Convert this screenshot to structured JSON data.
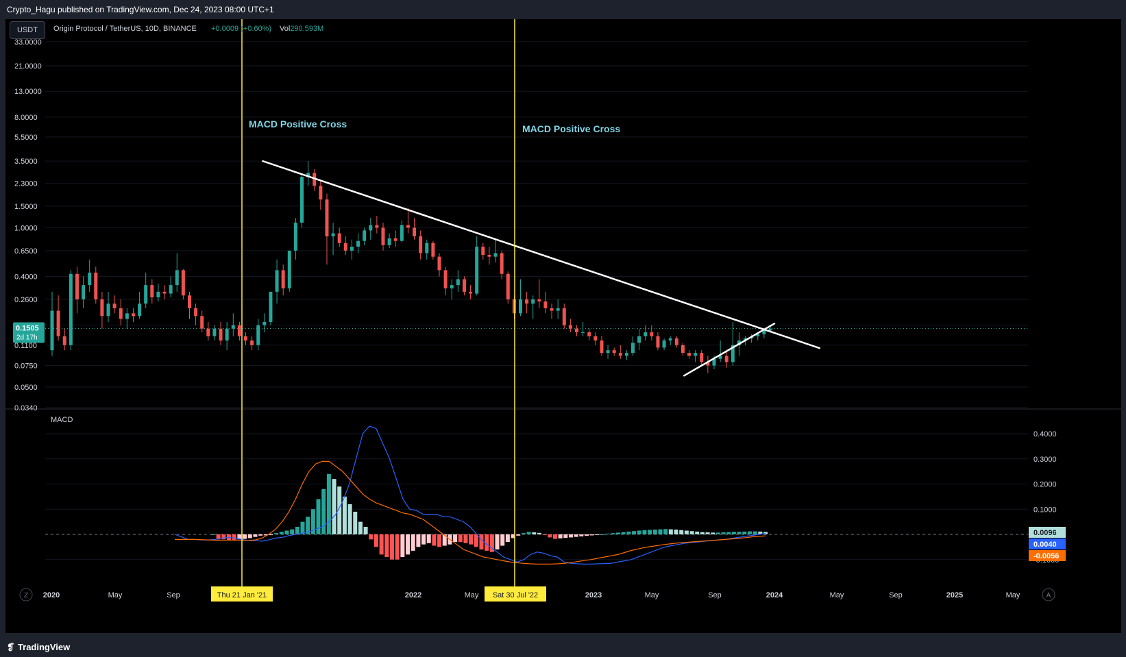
{
  "publish_line": "Crypto_Hagu published on TradingView.com, Dec 24, 2023 08:00 UTC+1",
  "header": {
    "currency_button": "USDT",
    "symbol_title": "Origin Protocol / TetherUS, 10D, BINANCE",
    "change_text": "+0.0009 (+0.60%)",
    "vol_label": "Vol",
    "vol_value": "290.593M"
  },
  "colors": {
    "up": "#26a69a",
    "down": "#ef5350",
    "background": "#000000",
    "vertical_line": "#ffeb3b",
    "annotation_text": "#7fd6e6",
    "macd_line": "#2962ff",
    "signal_line": "#ff6d00",
    "hist_up_strong": "#26a69a",
    "hist_up_weak": "#b2dfdb",
    "hist_down_strong": "#ff5252",
    "hist_down_weak": "#ffcdd2"
  },
  "annotations": {
    "cross_1": "MACD Positive Cross",
    "cross_2": "MACD Positive Cross"
  },
  "price_axis": {
    "ticks": [
      "33.0000",
      "21.0000",
      "13.0000",
      "8.0000",
      "5.5000",
      "3.5000",
      "2.3000",
      "1.5000",
      "1.0000",
      "0.6500",
      "0.4000",
      "0.2600",
      "0.1600",
      "0.1100",
      "0.0750",
      "0.0500",
      "0.0340"
    ],
    "current_price": "0.1505",
    "countdown": "2d 17h"
  },
  "macd_pane": {
    "title": "MACD",
    "ticks": [
      "0.4000",
      "0.3000",
      "0.2000",
      "0.1000",
      "-0.1000"
    ],
    "histogram_value": "0.0096",
    "macd_value": "0.0040",
    "signal_value": "-0.0056"
  },
  "time_axis": {
    "labels": [
      "2020",
      "May",
      "Sep",
      "2022",
      "May",
      "2023",
      "May",
      "Sep",
      "2024",
      "May",
      "Sep",
      "2025",
      "May"
    ],
    "highlight_1": "Thu 21 Jan '21",
    "highlight_2": "Sat 30 Jul '22",
    "left_button": "Z",
    "right_button": "A"
  },
  "footer": {
    "brand": "TradingView"
  },
  "chart_data": {
    "type": "candlestick",
    "symbol": "Origin Protocol / TetherUS",
    "interval": "10D",
    "exchange": "BINANCE",
    "scale": "log",
    "ylim": [
      0.034,
      33
    ],
    "ohlc": [
      [
        0.1,
        0.3,
        0.09,
        0.21
      ],
      [
        0.21,
        0.28,
        0.12,
        0.13
      ],
      [
        0.13,
        0.15,
        0.1,
        0.11
      ],
      [
        0.11,
        0.45,
        0.1,
        0.42
      ],
      [
        0.42,
        0.48,
        0.2,
        0.26
      ],
      [
        0.26,
        0.4,
        0.22,
        0.34
      ],
      [
        0.34,
        0.55,
        0.3,
        0.43
      ],
      [
        0.43,
        0.48,
        0.24,
        0.26
      ],
      [
        0.26,
        0.3,
        0.15,
        0.19
      ],
      [
        0.19,
        0.3,
        0.17,
        0.24
      ],
      [
        0.24,
        0.28,
        0.2,
        0.22
      ],
      [
        0.22,
        0.26,
        0.16,
        0.18
      ],
      [
        0.18,
        0.22,
        0.15,
        0.2
      ],
      [
        0.2,
        0.22,
        0.17,
        0.19
      ],
      [
        0.19,
        0.3,
        0.18,
        0.24
      ],
      [
        0.24,
        0.43,
        0.22,
        0.34
      ],
      [
        0.34,
        0.38,
        0.24,
        0.27
      ],
      [
        0.27,
        0.35,
        0.25,
        0.3
      ],
      [
        0.3,
        0.34,
        0.26,
        0.29
      ],
      [
        0.29,
        0.4,
        0.27,
        0.34
      ],
      [
        0.34,
        0.62,
        0.3,
        0.45
      ],
      [
        0.45,
        0.46,
        0.26,
        0.28
      ],
      [
        0.28,
        0.3,
        0.18,
        0.22
      ],
      [
        0.22,
        0.24,
        0.16,
        0.19
      ],
      [
        0.19,
        0.21,
        0.14,
        0.15
      ],
      [
        0.15,
        0.17,
        0.12,
        0.13
      ],
      [
        0.13,
        0.16,
        0.12,
        0.15
      ],
      [
        0.15,
        0.17,
        0.11,
        0.12
      ],
      [
        0.12,
        0.17,
        0.1,
        0.15
      ],
      [
        0.15,
        0.2,
        0.13,
        0.16
      ],
      [
        0.16,
        0.17,
        0.12,
        0.13
      ],
      [
        0.13,
        0.14,
        0.11,
        0.12
      ],
      [
        0.12,
        0.13,
        0.1,
        0.11
      ],
      [
        0.11,
        0.18,
        0.1,
        0.16
      ],
      [
        0.16,
        0.2,
        0.14,
        0.17
      ],
      [
        0.17,
        0.3,
        0.16,
        0.3
      ],
      [
        0.3,
        0.55,
        0.24,
        0.45
      ],
      [
        0.45,
        0.5,
        0.28,
        0.32
      ],
      [
        0.32,
        0.65,
        0.3,
        0.65
      ],
      [
        0.65,
        1.2,
        0.55,
        1.1
      ],
      [
        1.1,
        2.8,
        1.0,
        2.6
      ],
      [
        2.6,
        3.5,
        2.2,
        2.8
      ],
      [
        2.8,
        3.0,
        2.0,
        2.2
      ],
      [
        2.2,
        2.4,
        1.4,
        1.7
      ],
      [
        1.7,
        1.9,
        0.5,
        0.85
      ],
      [
        0.85,
        1.1,
        0.6,
        0.9
      ],
      [
        0.9,
        1.0,
        0.7,
        0.75
      ],
      [
        0.75,
        0.85,
        0.6,
        0.65
      ],
      [
        0.65,
        0.8,
        0.55,
        0.7
      ],
      [
        0.7,
        0.9,
        0.62,
        0.78
      ],
      [
        0.78,
        1.0,
        0.72,
        0.95
      ],
      [
        0.95,
        1.2,
        0.8,
        1.05
      ],
      [
        1.05,
        1.25,
        0.9,
        1.0
      ],
      [
        1.0,
        1.1,
        0.65,
        0.72
      ],
      [
        0.72,
        0.9,
        0.68,
        0.82
      ],
      [
        0.82,
        0.95,
        0.7,
        0.78
      ],
      [
        0.78,
        1.15,
        0.76,
        1.05
      ],
      [
        1.05,
        1.45,
        0.9,
        1.0
      ],
      [
        1.0,
        1.2,
        0.8,
        0.85
      ],
      [
        0.85,
        0.95,
        0.55,
        0.62
      ],
      [
        0.62,
        0.8,
        0.55,
        0.75
      ],
      [
        0.75,
        0.78,
        0.55,
        0.58
      ],
      [
        0.58,
        0.62,
        0.4,
        0.45
      ],
      [
        0.45,
        0.48,
        0.28,
        0.32
      ],
      [
        0.32,
        0.38,
        0.26,
        0.34
      ],
      [
        0.34,
        0.45,
        0.3,
        0.38
      ],
      [
        0.38,
        0.4,
        0.28,
        0.3
      ],
      [
        0.3,
        0.34,
        0.26,
        0.29
      ],
      [
        0.29,
        0.85,
        0.28,
        0.7
      ],
      [
        0.7,
        0.75,
        0.55,
        0.6
      ],
      [
        0.6,
        0.7,
        0.5,
        0.58
      ],
      [
        0.58,
        0.8,
        0.52,
        0.62
      ],
      [
        0.62,
        0.65,
        0.38,
        0.42
      ],
      [
        0.42,
        0.44,
        0.24,
        0.26
      ],
      [
        0.26,
        0.28,
        0.18,
        0.2
      ],
      [
        0.2,
        0.38,
        0.19,
        0.26
      ],
      [
        0.26,
        0.3,
        0.2,
        0.24
      ],
      [
        0.24,
        0.28,
        0.18,
        0.26
      ],
      [
        0.26,
        0.38,
        0.22,
        0.25
      ],
      [
        0.25,
        0.3,
        0.2,
        0.22
      ],
      [
        0.22,
        0.24,
        0.18,
        0.21
      ],
      [
        0.21,
        0.26,
        0.18,
        0.22
      ],
      [
        0.22,
        0.24,
        0.15,
        0.16
      ],
      [
        0.16,
        0.18,
        0.14,
        0.15
      ],
      [
        0.15,
        0.16,
        0.13,
        0.14
      ],
      [
        0.14,
        0.17,
        0.13,
        0.14
      ],
      [
        0.14,
        0.15,
        0.12,
        0.13
      ],
      [
        0.13,
        0.14,
        0.11,
        0.12
      ],
      [
        0.12,
        0.13,
        0.09,
        0.095
      ],
      [
        0.095,
        0.11,
        0.085,
        0.1
      ],
      [
        0.1,
        0.105,
        0.09,
        0.095
      ],
      [
        0.095,
        0.11,
        0.085,
        0.09
      ],
      [
        0.09,
        0.1,
        0.083,
        0.095
      ],
      [
        0.095,
        0.13,
        0.09,
        0.115
      ],
      [
        0.115,
        0.15,
        0.1,
        0.13
      ],
      [
        0.13,
        0.16,
        0.12,
        0.14
      ],
      [
        0.14,
        0.16,
        0.12,
        0.13
      ],
      [
        0.13,
        0.14,
        0.1,
        0.105
      ],
      [
        0.105,
        0.125,
        0.1,
        0.12
      ],
      [
        0.12,
        0.13,
        0.11,
        0.125
      ],
      [
        0.125,
        0.13,
        0.105,
        0.11
      ],
      [
        0.11,
        0.115,
        0.09,
        0.095
      ],
      [
        0.095,
        0.1,
        0.085,
        0.09
      ],
      [
        0.09,
        0.1,
        0.08,
        0.095
      ],
      [
        0.095,
        0.1,
        0.075,
        0.08
      ],
      [
        0.08,
        0.09,
        0.065,
        0.075
      ],
      [
        0.075,
        0.09,
        0.07,
        0.085
      ],
      [
        0.085,
        0.12,
        0.08,
        0.09
      ],
      [
        0.09,
        0.1,
        0.072,
        0.08
      ],
      [
        0.08,
        0.17,
        0.075,
        0.11
      ],
      [
        0.11,
        0.14,
        0.09,
        0.12
      ],
      [
        0.12,
        0.13,
        0.11,
        0.125
      ],
      [
        0.125,
        0.135,
        0.115,
        0.13
      ],
      [
        0.13,
        0.14,
        0.12,
        0.135
      ],
      [
        0.135,
        0.15,
        0.125,
        0.145
      ],
      [
        0.145,
        0.16,
        0.14,
        0.15
      ]
    ],
    "trendlines": [
      {
        "name": "descending resistance",
        "from": [
          "2021-03",
          3.5
        ],
        "to": [
          "2024-04",
          0.104
        ]
      },
      {
        "name": "rising support",
        "from": [
          "2023-07",
          0.062
        ],
        "to": [
          "2024-01",
          0.165
        ]
      }
    ],
    "vertical_markers": [
      "Thu 21 Jan '21",
      "Sat 30 Jul '22"
    ],
    "macd": [
      0.0,
      -0.01,
      -0.02,
      -0.02,
      -0.022,
      -0.022,
      -0.02,
      -0.015,
      -0.012,
      -0.015,
      -0.02,
      -0.025,
      -0.025,
      -0.027,
      -0.022,
      -0.015,
      -0.012,
      -0.005,
      0.0,
      0.005,
      0.01,
      0.02,
      0.03,
      0.05,
      0.08,
      0.13,
      0.2,
      0.3,
      0.4,
      0.43,
      0.42,
      0.36,
      0.3,
      0.22,
      0.14,
      0.1,
      0.095,
      0.08,
      0.08,
      0.08,
      0.07,
      0.07,
      0.06,
      0.05,
      0.03,
      0.0,
      -0.03,
      -0.05,
      -0.07,
      -0.09,
      -0.1,
      -0.11,
      -0.1,
      -0.08,
      -0.07,
      -0.075,
      -0.085,
      -0.09,
      -0.11,
      -0.115,
      -0.117,
      -0.118,
      -0.118,
      -0.117,
      -0.116,
      -0.115,
      -0.11,
      -0.105,
      -0.1,
      -0.09,
      -0.08,
      -0.07,
      -0.06,
      -0.05,
      -0.045,
      -0.04,
      -0.035,
      -0.032,
      -0.03,
      -0.027,
      -0.025,
      -0.022,
      -0.02,
      -0.016,
      -0.012,
      -0.008,
      -0.004,
      0.0,
      0.004
    ],
    "signal": [
      -0.02,
      -0.02,
      -0.02,
      -0.02,
      -0.021,
      -0.022,
      -0.023,
      -0.024,
      -0.025,
      -0.025,
      -0.025,
      -0.024,
      -0.022,
      -0.015,
      0.0,
      0.02,
      0.05,
      0.09,
      0.14,
      0.2,
      0.25,
      0.28,
      0.29,
      0.29,
      0.27,
      0.25,
      0.22,
      0.19,
      0.16,
      0.14,
      0.125,
      0.115,
      0.105,
      0.095,
      0.085,
      0.08,
      0.07,
      0.06,
      0.04,
      0.02,
      0.0,
      -0.02,
      -0.04,
      -0.06,
      -0.07,
      -0.08,
      -0.09,
      -0.095,
      -0.1,
      -0.105,
      -0.11,
      -0.113,
      -0.115,
      -0.117,
      -0.118,
      -0.118,
      -0.118,
      -0.117,
      -0.115,
      -0.112,
      -0.108,
      -0.104,
      -0.1,
      -0.095,
      -0.09,
      -0.085,
      -0.08,
      -0.072,
      -0.064,
      -0.058,
      -0.052,
      -0.048,
      -0.044,
      -0.04,
      -0.037,
      -0.034,
      -0.032,
      -0.03,
      -0.028,
      -0.026,
      -0.024,
      -0.022,
      -0.02,
      -0.018,
      -0.016,
      -0.013,
      -0.01,
      -0.008,
      -0.006
    ],
    "histogram": [
      0.0,
      -0.02,
      -0.02,
      -0.022,
      -0.022,
      -0.02,
      -0.018,
      -0.015,
      -0.01,
      -0.005,
      -0.004,
      -0.003,
      0.005,
      0.01,
      0.015,
      0.02,
      0.03,
      0.05,
      0.07,
      0.1,
      0.14,
      0.18,
      0.24,
      0.22,
      0.19,
      0.15,
      0.12,
      0.09,
      0.05,
      0.03,
      -0.02,
      -0.05,
      -0.08,
      -0.09,
      -0.1,
      -0.1,
      -0.09,
      -0.08,
      -0.065,
      -0.05,
      -0.04,
      -0.035,
      -0.045,
      -0.05,
      -0.045,
      -0.04,
      -0.03,
      -0.03,
      -0.035,
      -0.04,
      -0.05,
      -0.06,
      -0.065,
      -0.07,
      -0.06,
      -0.045,
      -0.03,
      -0.015,
      -0.005,
      0.005,
      0.01,
      0.008,
      0.006,
      -0.003,
      -0.012,
      -0.018,
      -0.016,
      -0.014,
      -0.012,
      -0.01,
      -0.008,
      -0.006,
      -0.004,
      -0.002,
      0.0,
      0.003,
      0.005,
      0.007,
      0.009,
      0.011,
      0.013,
      0.015,
      0.017,
      0.018,
      0.019,
      0.02,
      0.021,
      0.02,
      0.019,
      0.017,
      0.015,
      0.013,
      0.011,
      0.009,
      0.008,
      0.007,
      0.007,
      0.008,
      0.009,
      0.01,
      0.01,
      0.011,
      0.012,
      0.012,
      0.011,
      0.0096
    ],
    "macd_ylim": [
      -0.13,
      0.45
    ]
  }
}
